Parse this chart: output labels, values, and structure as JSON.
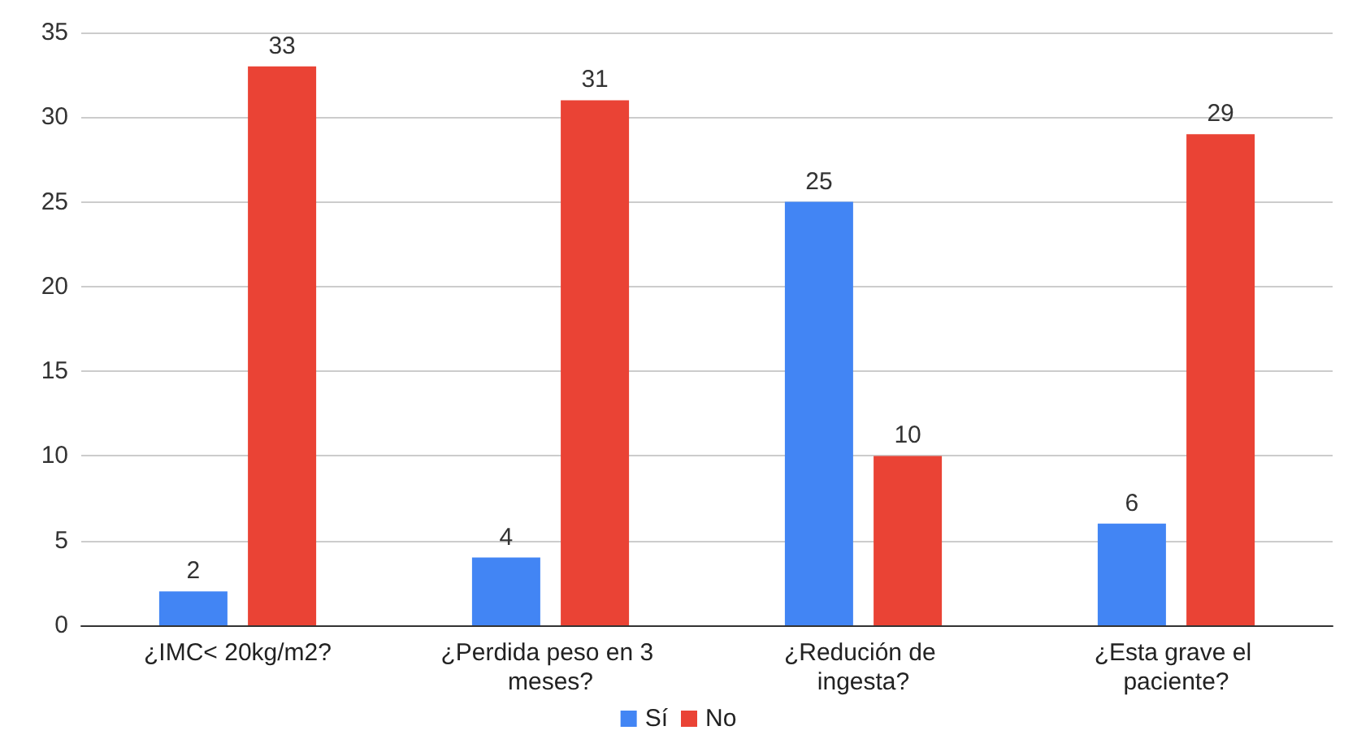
{
  "chart_data": {
    "type": "bar",
    "categories": [
      "¿IMC< 20kg/m2?",
      "¿Perdida peso en 3 meses?",
      "¿Redución de ingesta?",
      "¿Esta grave el paciente?"
    ],
    "series": [
      {
        "name": "Sí",
        "color": "#4285f4",
        "values": [
          2,
          4,
          25,
          6
        ]
      },
      {
        "name": "No",
        "color": "#ea4335",
        "values": [
          33,
          31,
          10,
          29
        ]
      }
    ],
    "ylim": [
      0,
      35
    ],
    "yticks": [
      0,
      5,
      10,
      15,
      20,
      25,
      30,
      35
    ],
    "grid": "y",
    "legend": "bottom",
    "data_labels": true
  }
}
